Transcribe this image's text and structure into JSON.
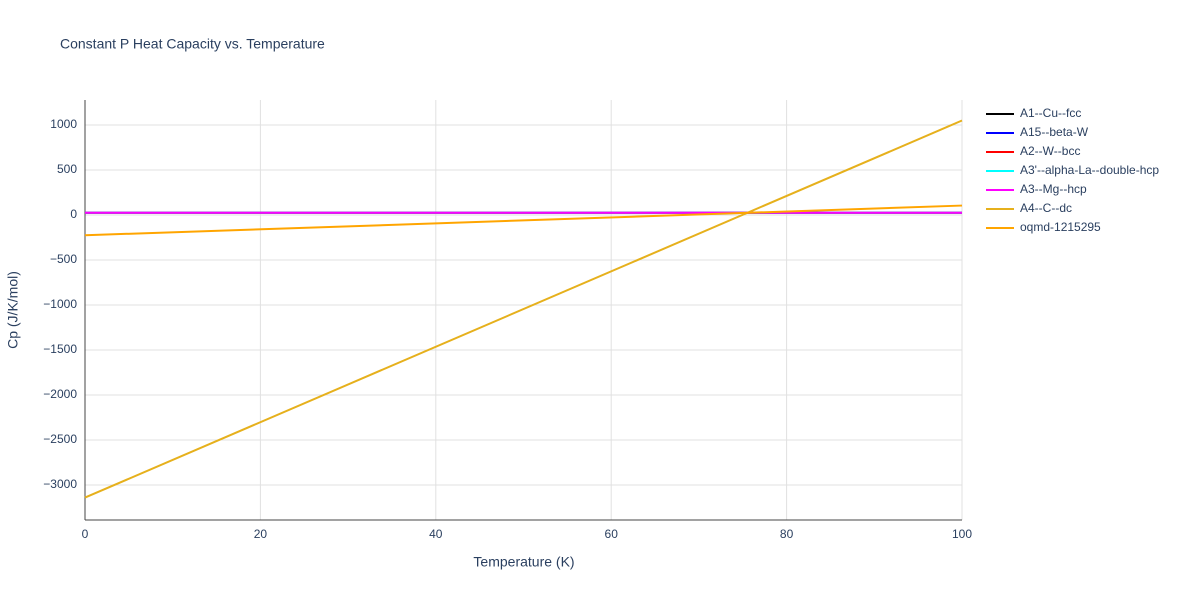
{
  "chart_data": {
    "type": "line",
    "title": "Constant P Heat Capacity vs. Temperature",
    "x_label": "Temperature (K)",
    "y_label": "Cp (J/K/mol)",
    "x": [
      0,
      100
    ],
    "series": [
      {
        "name": "A1--Cu--fcc",
        "color": "#000000",
        "values": [
          25,
          25
        ]
      },
      {
        "name": "A15--beta-W",
        "color": "#0000ff",
        "values": [
          25,
          25
        ]
      },
      {
        "name": "A2--W--bcc",
        "color": "#ff0000",
        "values": [
          25,
          25
        ]
      },
      {
        "name": "A3'--alpha-La--double-hcp",
        "color": "#00ffff",
        "values": [
          25,
          25
        ]
      },
      {
        "name": "A3--Mg--hcp",
        "color": "#ff00ff",
        "values": [
          25,
          25
        ]
      },
      {
        "name": "A4--C--dc",
        "color": "#e6b01c",
        "values": [
          -3140,
          1050
        ]
      },
      {
        "name": "oqmd-1215295",
        "color": "#ffa500",
        "values": [
          -225,
          105
        ]
      }
    ],
    "xlim": [
      0,
      100
    ],
    "xticks": [
      0,
      20,
      40,
      60,
      80,
      100
    ],
    "ylim": [
      -3389,
      1278
    ],
    "yticks": [
      {
        "value": -3000,
        "label": "−3000"
      },
      {
        "value": -2500,
        "label": "−2500"
      },
      {
        "value": -2000,
        "label": "−2000"
      },
      {
        "value": -1500,
        "label": "−1500"
      },
      {
        "value": -1000,
        "label": "−1000"
      },
      {
        "value": -500,
        "label": "−500"
      },
      0,
      500,
      1000
    ],
    "grid": true
  }
}
